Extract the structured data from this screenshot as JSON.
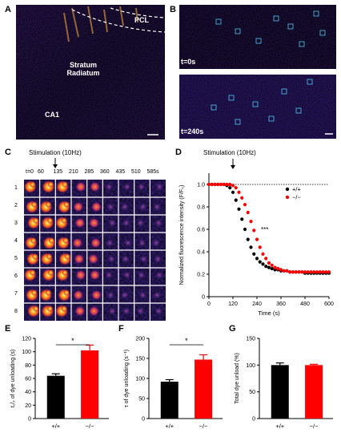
{
  "panels": {
    "A": "A",
    "B": "B",
    "C": "C",
    "D": "D",
    "E": "E",
    "F": "F",
    "G": "G"
  },
  "panel_a": {
    "labels": {
      "pcl": "PCL",
      "stratum": "Stratum\nRadiatum",
      "ca1": "CA1"
    }
  },
  "panel_b": {
    "time_top": "t=0s",
    "time_bottom": "t=240s"
  },
  "panel_c": {
    "stimulation_label": "Stimulation (10Hz)",
    "time_prefix": "t=0",
    "times": [
      "60",
      "135",
      "210",
      "285",
      "360",
      "435",
      "510",
      "585s"
    ],
    "rows": [
      "1",
      "2",
      "3",
      "4",
      "5",
      "6",
      "7",
      "8"
    ]
  },
  "colors": {
    "wt": "#000000",
    "ko": "#ff0000",
    "grid_line": "#ffffff",
    "roi_box": "#4ec9f0"
  },
  "chart_data": [
    {
      "id": "D",
      "type": "scatter",
      "stimulation_label": "Stimulation (10Hz)",
      "xlabel": "Time (s)",
      "ylabel": "Normalized fluorescence intensity (F/F₀)",
      "xlim": [
        0,
        600
      ],
      "ylim": [
        0,
        1.1
      ],
      "xticks": [
        "0",
        "120",
        "240",
        "360",
        "480",
        "600"
      ],
      "yticks": [
        "0",
        "0.2",
        "0.4",
        "0.6",
        "0.8",
        "1.0"
      ],
      "legend_placement": "right",
      "baseline": 1.0,
      "significance": "***",
      "stimulation_time": 120,
      "x": [
        0,
        15,
        30,
        45,
        60,
        75,
        90,
        105,
        120,
        135,
        150,
        165,
        180,
        195,
        210,
        225,
        240,
        255,
        270,
        285,
        300,
        315,
        330,
        345,
        360,
        375,
        390,
        405,
        420,
        435,
        450,
        465,
        480,
        495,
        510,
        525,
        540,
        555,
        570,
        585,
        600
      ],
      "series": [
        {
          "name": "+/+",
          "values": [
            1.0,
            1.0,
            1.0,
            1.0,
            1.0,
            1.0,
            0.99,
            0.97,
            0.93,
            0.86,
            0.78,
            0.69,
            0.6,
            0.51,
            0.44,
            0.38,
            0.34,
            0.31,
            0.29,
            0.27,
            0.26,
            0.25,
            0.24,
            0.24,
            0.23,
            0.23,
            0.23,
            0.22,
            0.22,
            0.22,
            0.22,
            0.22,
            0.21,
            0.21,
            0.21,
            0.21,
            0.21,
            0.21,
            0.21,
            0.21,
            0.21
          ]
        },
        {
          "name": "−/−",
          "values": [
            1.0,
            1.0,
            1.0,
            1.0,
            1.0,
            1.0,
            1.0,
            1.0,
            0.99,
            0.97,
            0.93,
            0.88,
            0.82,
            0.75,
            0.67,
            0.59,
            0.51,
            0.44,
            0.38,
            0.34,
            0.3,
            0.28,
            0.26,
            0.25,
            0.24,
            0.23,
            0.23,
            0.22,
            0.22,
            0.22,
            0.22,
            0.22,
            0.22,
            0.22,
            0.22,
            0.22,
            0.22,
            0.22,
            0.22,
            0.22,
            0.22
          ]
        }
      ]
    },
    {
      "id": "E",
      "type": "bar",
      "categories": [
        "+/+",
        "−/−"
      ],
      "values": [
        64,
        102
      ],
      "errors": [
        3,
        8
      ],
      "ylabel": "t₁/₂ of dye unloading (s)",
      "ylim": [
        0,
        120
      ],
      "yticks": [
        "0",
        "20",
        "40",
        "60",
        "80",
        "100",
        "120"
      ],
      "significance": "*"
    },
    {
      "id": "F",
      "type": "bar",
      "categories": [
        "+/+",
        "−/−"
      ],
      "values": [
        92,
        147
      ],
      "errors": [
        5,
        12
      ],
      "ylabel": "τ of dye unloading (s⁻¹)",
      "ylim": [
        0,
        200
      ],
      "yticks": [
        "0",
        "50",
        "100",
        "150",
        "200"
      ],
      "significance": "*"
    },
    {
      "id": "G",
      "type": "bar",
      "categories": [
        "+/+",
        "−/−"
      ],
      "values": [
        100,
        100
      ],
      "errors": [
        4,
        1.5
      ],
      "ylabel": "Total dye unload (%)",
      "ylim": [
        0,
        150
      ],
      "yticks": [
        "0",
        "50",
        "100",
        "150"
      ],
      "significance": ""
    }
  ]
}
